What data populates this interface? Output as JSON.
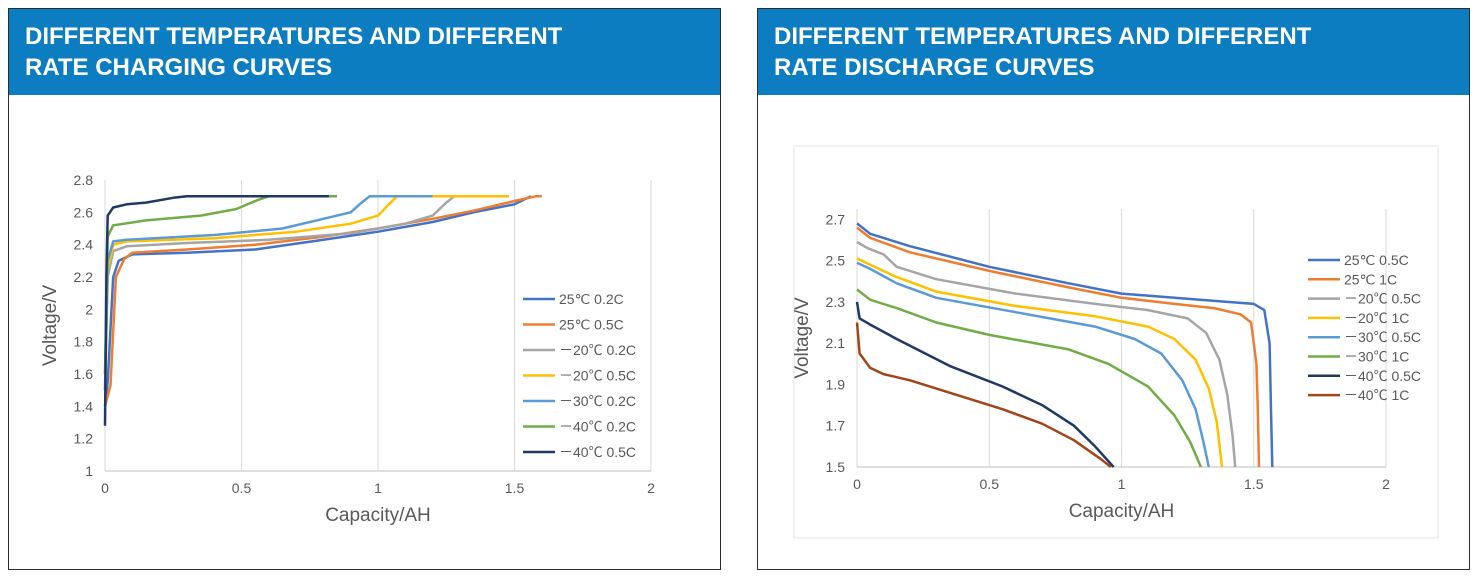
{
  "panels": [
    {
      "title_line1": "DIFFERENT TEMPERATURES AND DIFFERENT",
      "title_line2": "RATE CHARGING CURVES"
    },
    {
      "title_line1": "DIFFERENT TEMPERATURES AND DIFFERENT",
      "title_line2": "RATE DISCHARGE CURVES"
    }
  ],
  "chart_data": [
    {
      "type": "line",
      "title": "",
      "xlabel": "Capacity/AH",
      "ylabel": "Voltage/V",
      "xlim": [
        0,
        2
      ],
      "ylim": [
        1,
        2.8
      ],
      "xticks": [
        "0",
        "0.5",
        "1",
        "1.5",
        "2"
      ],
      "yticks": [
        "1",
        "1.2",
        "1.4",
        "1.6",
        "1.8",
        "2",
        "2.2",
        "2.4",
        "2.6",
        "2.8"
      ],
      "grid": "vertical",
      "legend_position": "right",
      "series": [
        {
          "name": "25℃ 0.2C",
          "color": "#4472c4",
          "points": [
            [
              0,
              1.4
            ],
            [
              0.01,
              1.55
            ],
            [
              0.03,
              2.2
            ],
            [
              0.05,
              2.3
            ],
            [
              0.1,
              2.34
            ],
            [
              0.3,
              2.35
            ],
            [
              0.55,
              2.37
            ],
            [
              0.8,
              2.43
            ],
            [
              1.0,
              2.48
            ],
            [
              1.2,
              2.54
            ],
            [
              1.35,
              2.6
            ],
            [
              1.5,
              2.65
            ],
            [
              1.56,
              2.7
            ]
          ]
        },
        {
          "name": "25℃ 0.5C",
          "color": "#ed7d31",
          "points": [
            [
              0,
              1.4
            ],
            [
              0.02,
              1.53
            ],
            [
              0.04,
              2.2
            ],
            [
              0.07,
              2.31
            ],
            [
              0.1,
              2.35
            ],
            [
              0.3,
              2.37
            ],
            [
              0.55,
              2.4
            ],
            [
              0.8,
              2.45
            ],
            [
              1.0,
              2.5
            ],
            [
              1.2,
              2.56
            ],
            [
              1.35,
              2.61
            ],
            [
              1.5,
              2.67
            ],
            [
              1.58,
              2.7
            ],
            [
              1.6,
              2.7
            ]
          ]
        },
        {
          "name": "－20℃ 0.2C",
          "color": "#a5a5a5",
          "points": [
            [
              0,
              1.5
            ],
            [
              0.01,
              2.2
            ],
            [
              0.03,
              2.36
            ],
            [
              0.08,
              2.39
            ],
            [
              0.3,
              2.41
            ],
            [
              0.6,
              2.43
            ],
            [
              0.9,
              2.47
            ],
            [
              1.1,
              2.53
            ],
            [
              1.2,
              2.58
            ],
            [
              1.25,
              2.66
            ],
            [
              1.28,
              2.7
            ],
            [
              1.35,
              2.7
            ]
          ]
        },
        {
          "name": "－20℃ 0.5C",
          "color": "#ffc000",
          "points": [
            [
              0,
              1.6
            ],
            [
              0.01,
              2.25
            ],
            [
              0.03,
              2.4
            ],
            [
              0.08,
              2.42
            ],
            [
              0.4,
              2.44
            ],
            [
              0.7,
              2.48
            ],
            [
              0.9,
              2.53
            ],
            [
              1.0,
              2.58
            ],
            [
              1.04,
              2.65
            ],
            [
              1.07,
              2.7
            ],
            [
              1.48,
              2.7
            ]
          ]
        },
        {
          "name": "－30℃ 0.2C",
          "color": "#5b9bd5",
          "points": [
            [
              0,
              1.5
            ],
            [
              0.01,
              2.3
            ],
            [
              0.03,
              2.42
            ],
            [
              0.08,
              2.43
            ],
            [
              0.4,
              2.46
            ],
            [
              0.65,
              2.5
            ],
            [
              0.8,
              2.56
            ],
            [
              0.9,
              2.6
            ],
            [
              0.94,
              2.66
            ],
            [
              0.97,
              2.7
            ],
            [
              1.2,
              2.7
            ]
          ]
        },
        {
          "name": "－40℃ 0.2C",
          "color": "#70ad47",
          "points": [
            [
              0,
              1.6
            ],
            [
              0.01,
              2.45
            ],
            [
              0.03,
              2.52
            ],
            [
              0.15,
              2.55
            ],
            [
              0.35,
              2.58
            ],
            [
              0.48,
              2.62
            ],
            [
              0.55,
              2.67
            ],
            [
              0.6,
              2.7
            ],
            [
              0.85,
              2.7
            ]
          ]
        },
        {
          "name": "－40℃ 0.5C",
          "color": "#203864",
          "points": [
            [
              0,
              1.28
            ],
            [
              0.005,
              2.2
            ],
            [
              0.01,
              2.58
            ],
            [
              0.03,
              2.63
            ],
            [
              0.08,
              2.65
            ],
            [
              0.15,
              2.66
            ],
            [
              0.25,
              2.69
            ],
            [
              0.3,
              2.7
            ],
            [
              0.82,
              2.7
            ]
          ]
        }
      ]
    },
    {
      "type": "line",
      "title": "",
      "xlabel": "Capacity/AH",
      "ylabel": "Voltage/V",
      "xlim": [
        0,
        2
      ],
      "ylim": [
        1.5,
        2.75
      ],
      "xticks": [
        "0",
        "0.5",
        "1",
        "1.5",
        "2"
      ],
      "yticks": [
        "1.5",
        "1.7",
        "1.9",
        "2.1",
        "2.3",
        "2.5",
        "2.7"
      ],
      "grid": "vertical",
      "legend_position": "right",
      "series": [
        {
          "name": "25℃ 0.5C",
          "color": "#4472c4",
          "points": [
            [
              0,
              2.68
            ],
            [
              0.05,
              2.63
            ],
            [
              0.2,
              2.57
            ],
            [
              0.5,
              2.47
            ],
            [
              0.8,
              2.39
            ],
            [
              1.0,
              2.34
            ],
            [
              1.2,
              2.32
            ],
            [
              1.4,
              2.3
            ],
            [
              1.5,
              2.29
            ],
            [
              1.54,
              2.26
            ],
            [
              1.56,
              2.1
            ],
            [
              1.565,
              1.8
            ],
            [
              1.57,
              1.5
            ]
          ]
        },
        {
          "name": "25℃ 1C",
          "color": "#ed7d31",
          "points": [
            [
              0,
              2.66
            ],
            [
              0.05,
              2.61
            ],
            [
              0.2,
              2.54
            ],
            [
              0.5,
              2.45
            ],
            [
              0.8,
              2.37
            ],
            [
              1.0,
              2.32
            ],
            [
              1.2,
              2.29
            ],
            [
              1.35,
              2.27
            ],
            [
              1.45,
              2.24
            ],
            [
              1.49,
              2.2
            ],
            [
              1.51,
              2.0
            ],
            [
              1.515,
              1.8
            ],
            [
              1.52,
              1.5
            ]
          ]
        },
        {
          "name": "－20℃ 0.5C",
          "color": "#a5a5a5",
          "points": [
            [
              0,
              2.59
            ],
            [
              0.04,
              2.56
            ],
            [
              0.1,
              2.53
            ],
            [
              0.15,
              2.47
            ],
            [
              0.3,
              2.41
            ],
            [
              0.6,
              2.34
            ],
            [
              0.9,
              2.29
            ],
            [
              1.1,
              2.26
            ],
            [
              1.25,
              2.22
            ],
            [
              1.32,
              2.15
            ],
            [
              1.37,
              2.02
            ],
            [
              1.4,
              1.85
            ],
            [
              1.42,
              1.65
            ],
            [
              1.43,
              1.5
            ]
          ]
        },
        {
          "name": "－20℃ 1C",
          "color": "#ffc000",
          "points": [
            [
              0,
              2.51
            ],
            [
              0.05,
              2.48
            ],
            [
              0.15,
              2.42
            ],
            [
              0.3,
              2.35
            ],
            [
              0.6,
              2.28
            ],
            [
              0.9,
              2.23
            ],
            [
              1.1,
              2.18
            ],
            [
              1.2,
              2.12
            ],
            [
              1.28,
              2.02
            ],
            [
              1.33,
              1.88
            ],
            [
              1.36,
              1.72
            ],
            [
              1.38,
              1.5
            ]
          ]
        },
        {
          "name": "－30℃ 0.5C",
          "color": "#5b9bd5",
          "points": [
            [
              0,
              2.49
            ],
            [
              0.05,
              2.46
            ],
            [
              0.15,
              2.39
            ],
            [
              0.3,
              2.32
            ],
            [
              0.6,
              2.25
            ],
            [
              0.9,
              2.18
            ],
            [
              1.05,
              2.12
            ],
            [
              1.15,
              2.05
            ],
            [
              1.23,
              1.92
            ],
            [
              1.28,
              1.78
            ],
            [
              1.31,
              1.62
            ],
            [
              1.33,
              1.5
            ]
          ]
        },
        {
          "name": "－30℃ 1C",
          "color": "#70ad47",
          "points": [
            [
              0,
              2.36
            ],
            [
              0.05,
              2.31
            ],
            [
              0.15,
              2.27
            ],
            [
              0.3,
              2.2
            ],
            [
              0.5,
              2.14
            ],
            [
              0.8,
              2.07
            ],
            [
              0.95,
              2.0
            ],
            [
              1.1,
              1.89
            ],
            [
              1.2,
              1.75
            ],
            [
              1.26,
              1.62
            ],
            [
              1.3,
              1.5
            ]
          ]
        },
        {
          "name": "－40℃ 0.5C",
          "color": "#203864",
          "points": [
            [
              0,
              2.3
            ],
            [
              0.01,
              2.22
            ],
            [
              0.05,
              2.19
            ],
            [
              0.15,
              2.12
            ],
            [
              0.35,
              1.99
            ],
            [
              0.55,
              1.89
            ],
            [
              0.7,
              1.8
            ],
            [
              0.82,
              1.7
            ],
            [
              0.9,
              1.6
            ],
            [
              0.97,
              1.5
            ]
          ]
        },
        {
          "name": "－40℃ 1C",
          "color": "#a0461a",
          "points": [
            [
              0,
              2.2
            ],
            [
              0.01,
              2.05
            ],
            [
              0.05,
              1.98
            ],
            [
              0.1,
              1.95
            ],
            [
              0.2,
              1.92
            ],
            [
              0.35,
              1.86
            ],
            [
              0.55,
              1.78
            ],
            [
              0.7,
              1.71
            ],
            [
              0.82,
              1.63
            ],
            [
              0.92,
              1.54
            ],
            [
              0.96,
              1.5
            ]
          ]
        }
      ]
    }
  ]
}
